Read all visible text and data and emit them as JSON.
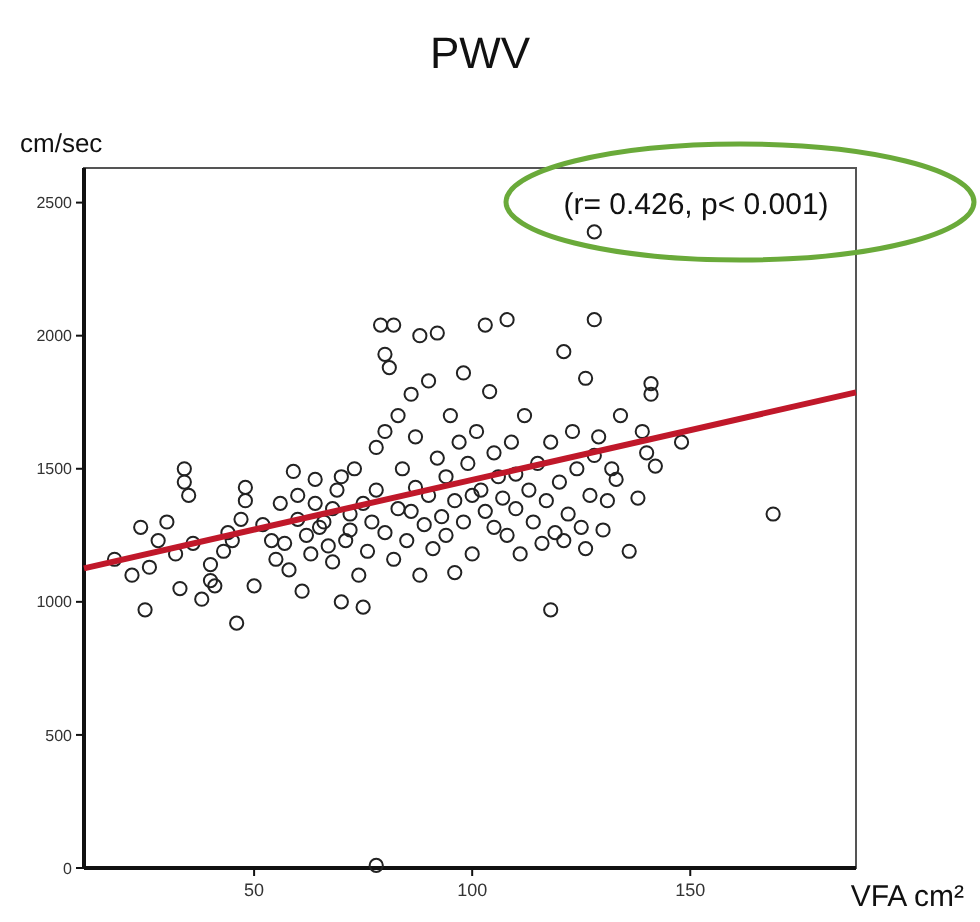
{
  "chart_data": {
    "type": "scatter",
    "title": "PWV",
    "xlabel": "VFA cm²",
    "ylabel": "cm/sec",
    "annotations": [
      "(r= 0.426, p< 0.001)"
    ],
    "xlim": [
      11,
      188
    ],
    "xticks": [
      50,
      100,
      150
    ],
    "ylim": [
      0,
      2630
    ],
    "yticks": [
      0,
      500,
      1000,
      1500,
      2000,
      2500
    ],
    "grid": false,
    "series": [
      {
        "color": "#222222",
        "marker": "circle",
        "x": [
          18,
          22,
          24,
          25,
          26,
          28,
          30,
          32,
          33,
          34,
          34,
          35,
          36,
          38,
          40,
          40,
          41,
          43,
          44,
          45,
          46,
          47,
          48,
          48,
          50,
          52,
          54,
          55,
          56,
          57,
          58,
          59,
          60,
          60,
          61,
          62,
          63,
          64,
          64,
          65,
          66,
          67,
          68,
          68,
          69,
          70,
          70,
          71,
          72,
          72,
          73,
          74,
          75,
          75,
          76,
          77,
          78,
          78,
          79,
          80,
          80,
          80,
          81,
          82,
          82,
          83,
          83,
          84,
          85,
          86,
          86,
          87,
          87,
          88,
          88,
          89,
          90,
          90,
          91,
          92,
          92,
          93,
          94,
          94,
          95,
          96,
          96,
          97,
          98,
          98,
          99,
          100,
          100,
          101,
          102,
          103,
          103,
          104,
          105,
          105,
          106,
          107,
          108,
          108,
          109,
          110,
          110,
          111,
          112,
          113,
          114,
          115,
          116,
          117,
          118,
          118,
          119,
          120,
          121,
          121,
          122,
          123,
          124,
          125,
          126,
          126,
          127,
          128,
          128,
          129,
          130,
          131,
          132,
          133,
          134,
          136,
          138,
          139,
          140,
          141,
          141,
          142,
          148,
          169,
          128,
          78
        ],
        "values": [
          1160,
          1100,
          1280,
          970,
          1130,
          1230,
          1300,
          1180,
          1050,
          1500,
          1450,
          1400,
          1220,
          1010,
          1140,
          1080,
          1060,
          1190,
          1260,
          1230,
          920,
          1310,
          1430,
          1380,
          1060,
          1290,
          1230,
          1160,
          1370,
          1220,
          1120,
          1490,
          1400,
          1310,
          1040,
          1250,
          1180,
          1460,
          1370,
          1280,
          1300,
          1210,
          1350,
          1150,
          1420,
          1470,
          1000,
          1230,
          1330,
          1270,
          1500,
          1100,
          1370,
          980,
          1190,
          1300,
          1420,
          1580,
          2040,
          1930,
          1640,
          1260,
          1880,
          1160,
          2040,
          1350,
          1700,
          1500,
          1230,
          1780,
          1340,
          1620,
          1430,
          2000,
          1100,
          1290,
          1830,
          1400,
          1200,
          2010,
          1540,
          1320,
          1470,
          1250,
          1700,
          1110,
          1380,
          1600,
          1300,
          1860,
          1520,
          1180,
          1400,
          1640,
          1420,
          2040,
          1340,
          1790,
          1280,
          1560,
          1470,
          1390,
          2060,
          1250,
          1600,
          1350,
          1480,
          1180,
          1700,
          1420,
          1300,
          1520,
          1220,
          1380,
          1600,
          970,
          1260,
          1450,
          1940,
          1230,
          1330,
          1640,
          1500,
          1280,
          1840,
          1200,
          1400,
          2060,
          1550,
          1620,
          1270,
          1380,
          1500,
          1460,
          1700,
          1190,
          1390,
          1640,
          1560,
          1780,
          1820,
          1510,
          1600,
          1330,
          2390,
          10
        ]
      },
      {
        "type": "line",
        "color": "#c0182a",
        "x": [
          11,
          188
        ],
        "values": [
          1126,
          1787
        ]
      }
    ]
  }
}
